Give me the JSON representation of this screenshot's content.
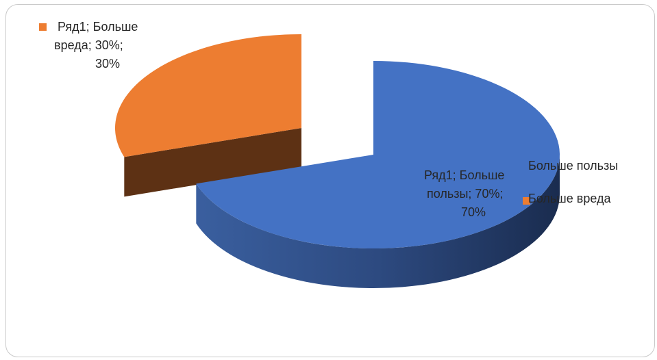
{
  "chart_data": {
    "type": "pie",
    "style": "3d-exploded",
    "series": [
      {
        "name": "Ряд1",
        "categories": [
          "Больше пользы",
          "Больше вреда"
        ],
        "values": [
          70,
          30
        ],
        "percent_labels": [
          "70%",
          "30%"
        ]
      }
    ],
    "colors": {
      "Больше пользы": "#4472c4",
      "Больше вреда": "#ed7d31"
    },
    "data_labels": [
      {
        "category": "Больше вреда",
        "lines": [
          "Ряд1; Больше",
          "вреда; 30%;",
          "30%"
        ]
      },
      {
        "category": "Больше пользы",
        "lines": [
          "Ряд1; Больше",
          "пользы; 70%;",
          "70%"
        ]
      }
    ],
    "legend": {
      "position": "right",
      "items": [
        {
          "label": "Больше пользы",
          "color": "#4472c4"
        },
        {
          "label": "Больше вреда",
          "color": "#ed7d31"
        }
      ]
    }
  }
}
